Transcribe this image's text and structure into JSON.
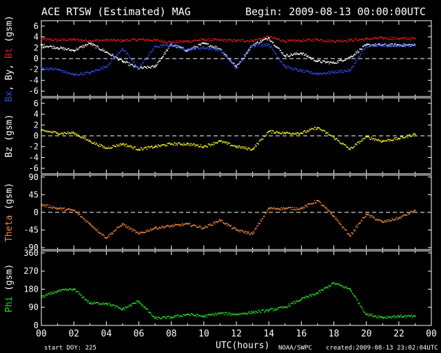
{
  "header": {
    "title": "ACE RTSW (Estimated) MAG",
    "begin": "Begin: 2009-08-13 00:00:00UTC"
  },
  "footer": {
    "start_doy": "start DOY:  225",
    "xaxis_label": "UTC(hours)",
    "source": "NOAA/SWPC",
    "created": "created:2009-08-13 23:02:04UTC"
  },
  "colors": {
    "bg": "#000000",
    "axes": "#ffffff",
    "bt": "#e01818",
    "bx": "#2c4cf0",
    "by": "#ffffff",
    "bz": "#f0f020",
    "theta": "#f08838",
    "phi": "#20e020"
  },
  "chart_data": [
    {
      "type": "scatter",
      "panel": "b-components",
      "ylabel_parts": [
        {
          "text": "Bx",
          "color": "#2c4cf0"
        },
        {
          "text": ", ",
          "color": "#ffffff"
        },
        {
          "text": "By",
          "color": "#ffffff"
        },
        {
          "text": ", ",
          "color": "#ffffff"
        },
        {
          "text": "Bt",
          "color": "#e01818"
        },
        {
          "text": "   (gsm)",
          "color": "#ffffff"
        }
      ],
      "xlim": [
        0,
        24
      ],
      "ylim": [
        -7,
        7
      ],
      "yticks": [
        "6",
        "4",
        "2",
        "0",
        "-2",
        "-4",
        "-6"
      ],
      "ytick_values": [
        6,
        4,
        2,
        0,
        -2,
        -4,
        -6
      ],
      "zero_line": true,
      "x": [
        0,
        1,
        2,
        3,
        4,
        5,
        6,
        7,
        8,
        9,
        10,
        11,
        12,
        13,
        14,
        15,
        16,
        17,
        18,
        19,
        20,
        21,
        22,
        23
      ],
      "series": [
        {
          "name": "Bt",
          "color": "#e01818",
          "values": [
            3.6,
            3.4,
            3.5,
            3.3,
            3.4,
            3.3,
            3.5,
            3.4,
            3.0,
            3.2,
            3.5,
            3.4,
            3.3,
            3.3,
            4.0,
            3.2,
            3.3,
            3.5,
            3.2,
            3.4,
            3.6,
            3.8,
            3.7,
            3.7
          ]
        },
        {
          "name": "By",
          "color": "#ffffff",
          "values": [
            2.5,
            2.0,
            1.5,
            2.8,
            1.2,
            -0.5,
            -1.8,
            -1.5,
            2.6,
            1.5,
            2.8,
            1.8,
            -1.5,
            2.5,
            3.8,
            0.5,
            1.0,
            -0.5,
            -0.8,
            0.2,
            2.5,
            2.5,
            2.5,
            2.5
          ]
        },
        {
          "name": "Bx",
          "color": "#2c4cf0",
          "values": [
            -1.8,
            -2.0,
            -3.0,
            -2.6,
            -1.5,
            1.8,
            -1.8,
            2.2,
            2.5,
            1.7,
            2.0,
            1.6,
            -1.8,
            2.5,
            2.6,
            -1.5,
            -2.3,
            -2.8,
            -2.5,
            -2.2,
            2.3,
            2.4,
            2.4,
            2.4
          ]
        }
      ]
    },
    {
      "type": "scatter",
      "panel": "bz",
      "ylabel_parts": [
        {
          "text": "Bz  (gsm)",
          "color": "#ffffff"
        }
      ],
      "xlim": [
        0,
        24
      ],
      "ylim": [
        -7,
        7
      ],
      "yticks": [
        "6",
        "4",
        "2",
        "0",
        "-2",
        "-4",
        "-6"
      ],
      "ytick_values": [
        6,
        4,
        2,
        0,
        -2,
        -4,
        -6
      ],
      "zero_line": true,
      "x": [
        0,
        1,
        2,
        3,
        4,
        5,
        6,
        7,
        8,
        9,
        10,
        11,
        12,
        13,
        14,
        15,
        16,
        17,
        18,
        19,
        20,
        21,
        22,
        23
      ],
      "series": [
        {
          "color": "#f0f020",
          "values": [
            1.0,
            0.5,
            0.5,
            -1.0,
            -2.3,
            -1.5,
            -2.5,
            -2.0,
            -1.5,
            -1.5,
            -2.0,
            -1.0,
            -2.0,
            -2.5,
            0.8,
            0.5,
            0.5,
            1.5,
            -0.3,
            -2.5,
            -0.2,
            -1.0,
            -0.5,
            0.3
          ]
        }
      ]
    },
    {
      "type": "scatter",
      "panel": "theta",
      "ylabel_parts": [
        {
          "text": "Theta",
          "color": "#f08838"
        },
        {
          "text": "  (gsm)",
          "color": "#ffffff"
        }
      ],
      "xlim": [
        0,
        24
      ],
      "ylim": [
        -95,
        95
      ],
      "yticks": [
        "90",
        "45",
        "0",
        "-45",
        "-90"
      ],
      "ytick_values": [
        90,
        45,
        0,
        -45,
        -90
      ],
      "zero_line": true,
      "x": [
        0,
        1,
        2,
        3,
        4,
        5,
        6,
        7,
        8,
        9,
        10,
        11,
        12,
        13,
        14,
        15,
        16,
        17,
        18,
        19,
        20,
        21,
        22,
        23
      ],
      "series": [
        {
          "color": "#f08838",
          "values": [
            20,
            10,
            5,
            -30,
            -65,
            -30,
            -55,
            -40,
            -35,
            -30,
            -40,
            -20,
            -45,
            -55,
            10,
            10,
            10,
            30,
            -10,
            -60,
            -5,
            -25,
            -15,
            5
          ]
        }
      ]
    },
    {
      "type": "scatter",
      "panel": "phi",
      "ylabel_parts": [
        {
          "text": "Phi",
          "color": "#20e020"
        },
        {
          "text": "  (gsm)",
          "color": "#ffffff"
        }
      ],
      "xlim": [
        0,
        24
      ],
      "ylim": [
        0,
        370
      ],
      "yticks": [
        "360",
        "270",
        "180",
        "90",
        "0"
      ],
      "ytick_values": [
        360,
        270,
        180,
        90,
        0
      ],
      "zero_line": false,
      "x": [
        0,
        1,
        2,
        3,
        4,
        5,
        6,
        7,
        8,
        9,
        10,
        11,
        12,
        13,
        14,
        15,
        16,
        17,
        18,
        19,
        20,
        21,
        22,
        23
      ],
      "series": [
        {
          "color": "#20e020",
          "values": [
            140,
            170,
            180,
            110,
            110,
            80,
            120,
            35,
            40,
            55,
            45,
            60,
            55,
            65,
            75,
            90,
            130,
            160,
            210,
            180,
            55,
            40,
            45,
            45
          ]
        }
      ]
    }
  ],
  "xticks": [
    "00",
    "02",
    "04",
    "06",
    "08",
    "10",
    "12",
    "14",
    "16",
    "18",
    "20",
    "22",
    "00"
  ]
}
